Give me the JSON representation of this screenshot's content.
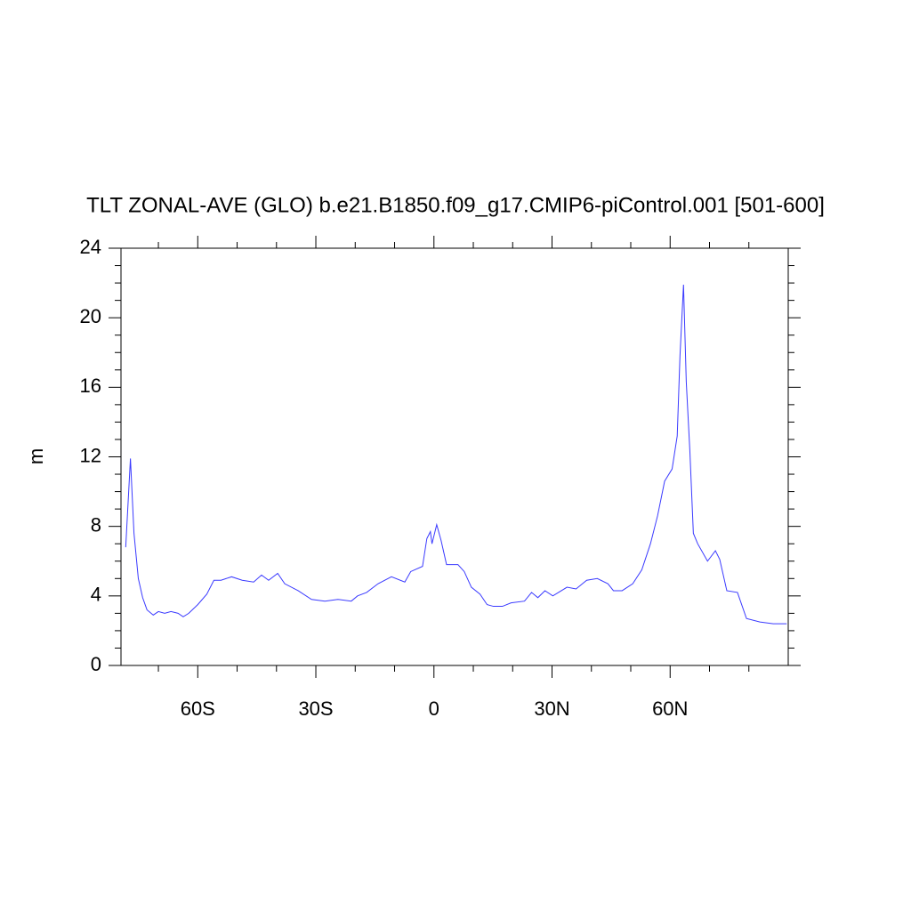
{
  "chart_data": {
    "type": "line",
    "title": "TLT ZONAL-AVE (GLO) b.e21.B1850.f09_g17.CMIP6-piControl.001 [501-600]",
    "y_label": "m",
    "x": [
      -78.3,
      -77.1,
      -76.2,
      -75.1,
      -74.0,
      -72.9,
      -71.3,
      -70.0,
      -68.4,
      -66.8,
      -65.0,
      -63.7,
      -62.3,
      -60.0,
      -57.7,
      -55.9,
      -54.1,
      -51.4,
      -48.7,
      -45.8,
      -43.8,
      -42.0,
      -39.7,
      -37.9,
      -34.5,
      -31.1,
      -27.7,
      -24.4,
      -21.0,
      -19.4,
      -17.1,
      -14.2,
      -10.8,
      -7.4,
      -5.9,
      -2.9,
      -1.8,
      -0.9,
      -0.5,
      0.7,
      1.8,
      3.2,
      6.1,
      7.7,
      9.5,
      11.7,
      13.5,
      15.1,
      17.4,
      19.6,
      23.0,
      24.8,
      26.4,
      28.2,
      30.2,
      33.8,
      36.1,
      38.8,
      41.5,
      44.2,
      45.6,
      47.8,
      50.5,
      52.8,
      55.0,
      56.8,
      58.6,
      60.5,
      61.8,
      62.5,
      63.4,
      64.1,
      65.0,
      65.9,
      67.0,
      69.5,
      71.5,
      72.6,
      74.4,
      77.1,
      79.4,
      82.8,
      86.2,
      89.6
    ],
    "series": [
      {
        "name": "TLT",
        "color": "#3a3aff",
        "values": [
          6.8,
          11.9,
          7.6,
          5.0,
          3.9,
          3.2,
          2.9,
          3.1,
          3.0,
          3.1,
          3.0,
          2.8,
          3.0,
          3.5,
          4.1,
          4.9,
          4.9,
          5.1,
          4.9,
          4.8,
          5.2,
          4.9,
          5.3,
          4.7,
          4.3,
          3.8,
          3.7,
          3.8,
          3.7,
          4.0,
          4.2,
          4.7,
          5.1,
          4.8,
          5.4,
          5.7,
          7.3,
          7.7,
          7.0,
          8.1,
          7.2,
          5.8,
          5.8,
          5.4,
          4.5,
          4.1,
          3.5,
          3.4,
          3.4,
          3.6,
          3.7,
          4.2,
          3.9,
          4.3,
          4.0,
          4.5,
          4.4,
          4.9,
          5.0,
          4.7,
          4.3,
          4.3,
          4.7,
          5.5,
          7.0,
          8.6,
          10.6,
          11.3,
          13.2,
          17.8,
          21.9,
          16.3,
          12.4,
          7.6,
          7.0,
          6.0,
          6.6,
          6.1,
          4.3,
          4.2,
          2.7,
          2.5,
          2.4,
          2.4
        ]
      }
    ],
    "xlim": [
      -79.5,
      90
    ],
    "ylim": [
      0,
      24
    ],
    "xticks": [
      {
        "value": -60,
        "label": "60S"
      },
      {
        "value": -30,
        "label": "30S"
      },
      0,
      {
        "value": 30,
        "label": "30N"
      },
      {
        "value": 60,
        "label": "60N"
      }
    ],
    "xminorticks": [
      -70,
      -50,
      -40,
      -20,
      -10,
      10,
      20,
      40,
      50,
      70,
      80
    ],
    "yticks": [
      0,
      4,
      8,
      12,
      16,
      20,
      24
    ],
    "yminorticks": [
      1,
      2,
      3,
      5,
      6,
      7,
      9,
      10,
      11,
      13,
      14,
      15,
      17,
      18,
      19,
      21,
      22,
      23
    ]
  }
}
